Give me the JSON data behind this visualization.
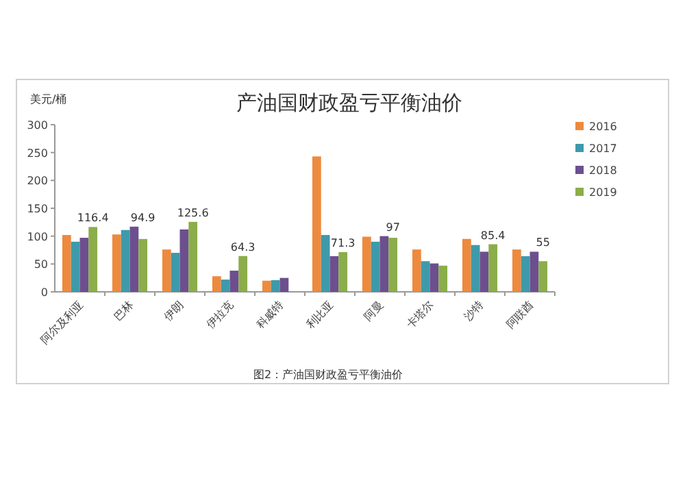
{
  "chart_data": {
    "type": "bar",
    "title": "产油国财政盈亏平衡油价",
    "ylabel": "美元/桶",
    "categories": [
      "阿尔及利亚",
      "巴林",
      "伊朗",
      "伊拉克",
      "科威特",
      "利比亚",
      "阿曼",
      "卡塔尔",
      "沙特",
      "阿联酋"
    ],
    "series": [
      {
        "name": "2016",
        "color": "#ed8a3e",
        "values": [
          102,
          103,
          76,
          28,
          20,
          243,
          99,
          76,
          95,
          76
        ]
      },
      {
        "name": "2017",
        "color": "#3e9aab",
        "values": [
          90,
          111,
          70,
          22,
          21,
          102,
          90,
          55,
          84,
          64
        ]
      },
      {
        "name": "2018",
        "color": "#6c4f8e",
        "values": [
          97,
          117,
          112,
          38,
          25,
          64,
          100,
          51,
          72,
          72
        ]
      },
      {
        "name": "2019",
        "color": "#8bad4a",
        "values": [
          116.4,
          94.9,
          125.6,
          64.3,
          null,
          71.3,
          97,
          47,
          85.4,
          55
        ],
        "value_labels": [
          "116.4",
          "94.9",
          "125.6",
          "64.3",
          null,
          "71.3",
          "97",
          null,
          "85.4",
          "55"
        ]
      }
    ],
    "ylim": [
      0,
      300
    ],
    "yticks": [
      0,
      50,
      100,
      150,
      200,
      250,
      300
    ],
    "legend": "right",
    "annotations": [
      "图2：产油国财政盈亏平衡油价"
    ]
  }
}
